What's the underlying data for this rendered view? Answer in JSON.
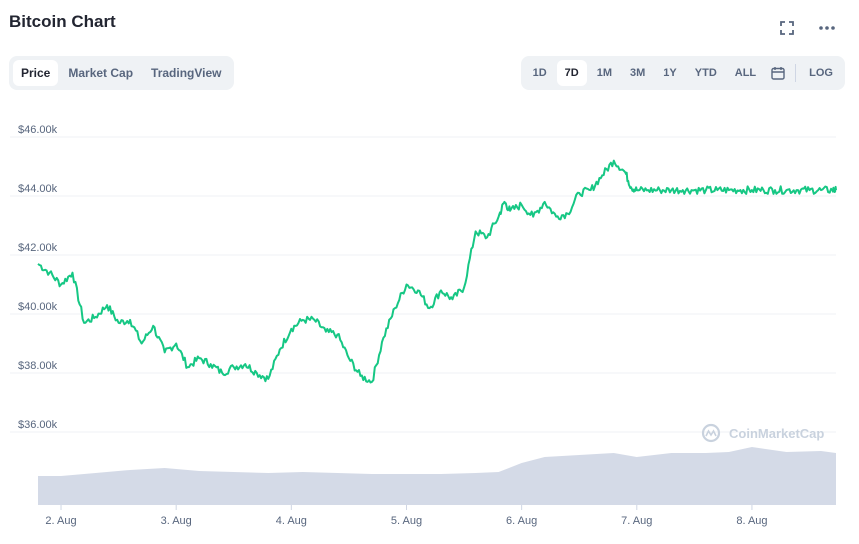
{
  "header": {
    "title": "Bitcoin Chart"
  },
  "tabs": [
    {
      "label": "Price",
      "active": true
    },
    {
      "label": "Market Cap",
      "active": false
    },
    {
      "label": "TradingView",
      "active": false
    }
  ],
  "ranges": [
    {
      "label": "1D",
      "active": false
    },
    {
      "label": "7D",
      "active": true
    },
    {
      "label": "1M",
      "active": false
    },
    {
      "label": "3M",
      "active": false
    },
    {
      "label": "1Y",
      "active": false
    },
    {
      "label": "YTD",
      "active": false
    },
    {
      "label": "ALL",
      "active": false
    }
  ],
  "log_label": "LOG",
  "watermark": "CoinMarketCap",
  "icons": [
    "fullscreen-icon",
    "more-icon",
    "calendar-icon",
    "coinmarketcap-logo-icon"
  ],
  "colors": {
    "line": "#16c784",
    "volume": "#cfd6e4",
    "grid": "#eff2f5"
  },
  "chart_data": {
    "type": "line",
    "x_ticks": [
      "2. Aug",
      "3. Aug",
      "4. Aug",
      "5. Aug",
      "6. Aug",
      "7. Aug",
      "8. Aug"
    ],
    "y_ticks": [
      "$46.00k",
      "$44.00k",
      "$42.00k",
      "$40.00k",
      "$38.00k",
      "$36.00k"
    ],
    "y_tick_values": [
      46000,
      44000,
      42000,
      40000,
      38000,
      36000
    ],
    "ylim": [
      36000,
      46500
    ],
    "x_range": [
      1.8,
      8.73
    ],
    "grid": true,
    "series": [
      {
        "x": [
          1.8,
          1.9,
          2.0,
          2.1,
          2.2,
          2.3,
          2.4,
          2.5,
          2.6,
          2.7,
          2.8,
          2.9,
          3.0,
          3.1,
          3.2,
          3.3,
          3.4,
          3.5,
          3.6,
          3.7,
          3.8,
          3.9,
          4.0,
          4.1,
          4.2,
          4.3,
          4.4,
          4.5,
          4.6,
          4.7,
          4.8,
          4.9,
          5.0,
          5.1,
          5.2,
          5.3,
          5.4,
          5.5,
          5.6,
          5.7,
          5.8,
          5.85,
          5.9,
          6.0,
          6.1,
          6.2,
          6.3,
          6.4,
          6.5,
          6.6,
          6.7,
          6.8,
          6.9,
          6.95,
          7.0,
          7.1,
          7.2,
          7.3,
          7.4,
          7.5,
          7.6,
          7.7,
          7.8,
          7.9,
          8.0,
          8.1,
          8.2,
          8.3,
          8.4,
          8.5,
          8.6,
          8.7,
          8.73
        ],
        "y": [
          41700,
          41400,
          41000,
          41400,
          39700,
          39900,
          40300,
          39700,
          39800,
          39000,
          39600,
          38700,
          39000,
          38200,
          38500,
          38300,
          38000,
          38200,
          38300,
          38000,
          37800,
          38800,
          39500,
          39800,
          39800,
          39400,
          39300,
          38500,
          37900,
          37700,
          39200,
          40200,
          41000,
          40800,
          40200,
          40800,
          40500,
          40900,
          42800,
          42600,
          43300,
          43800,
          43500,
          43700,
          43300,
          43800,
          43300,
          43400,
          44100,
          44200,
          44700,
          45200,
          44800,
          44300,
          44200,
          44200,
          44200,
          44200,
          44200,
          44200,
          44200,
          44200,
          44200,
          44200,
          44200,
          44200,
          44200,
          44200,
          44200,
          44200,
          44200,
          44200,
          44200
        ]
      }
    ],
    "volume": {
      "x": [
        1.8,
        2.0,
        2.3,
        2.6,
        2.9,
        3.2,
        3.5,
        3.8,
        4.1,
        4.4,
        4.7,
        5.0,
        5.3,
        5.6,
        5.8,
        6.0,
        6.2,
        6.5,
        6.8,
        7.0,
        7.3,
        7.6,
        7.8,
        8.0,
        8.3,
        8.6,
        8.73
      ],
      "y": [
        0.29,
        0.29,
        0.32,
        0.35,
        0.37,
        0.34,
        0.33,
        0.32,
        0.33,
        0.32,
        0.31,
        0.31,
        0.31,
        0.32,
        0.33,
        0.42,
        0.48,
        0.5,
        0.52,
        0.48,
        0.52,
        0.52,
        0.53,
        0.58,
        0.53,
        0.54,
        0.52
      ]
    }
  }
}
